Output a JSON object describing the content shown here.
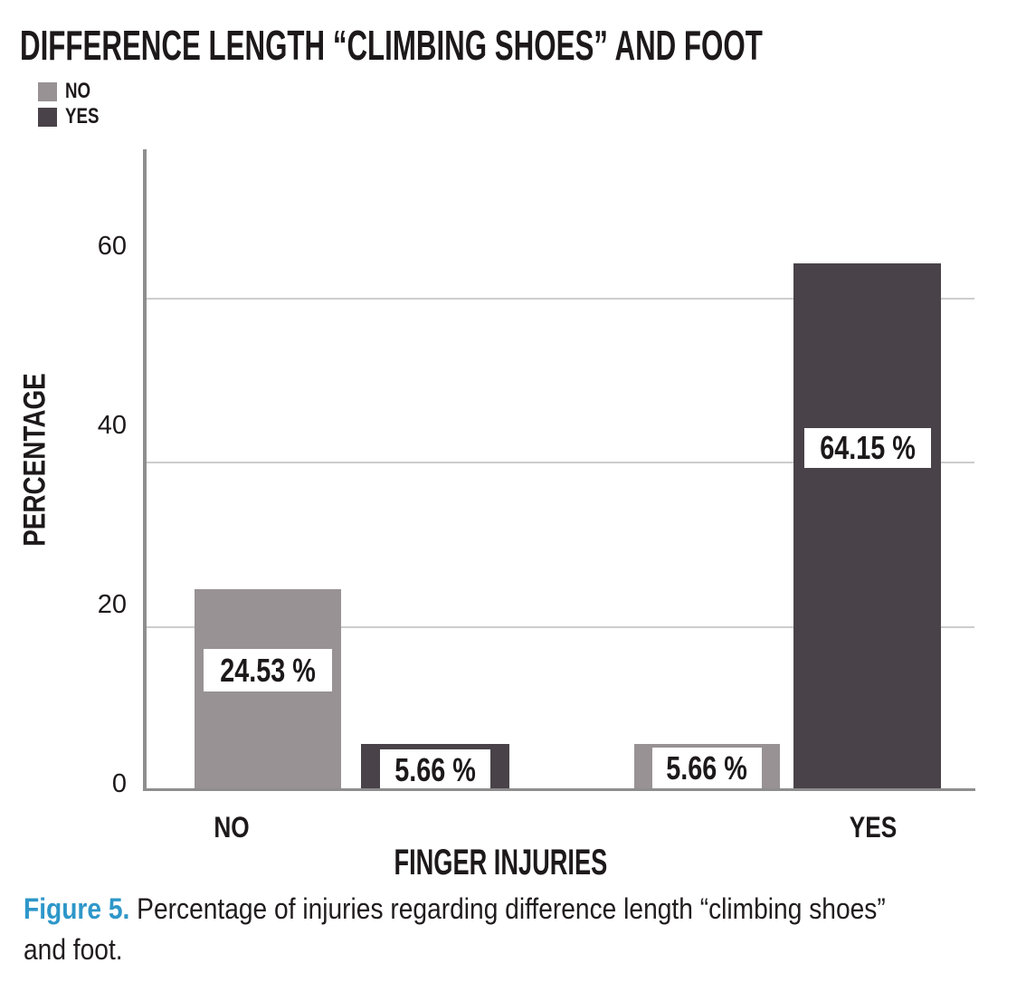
{
  "page": {
    "background": "#ffffff"
  },
  "chart_data": {
    "type": "bar",
    "title": "DIFFERENCE LENGTH “CLIMBING SHOES” AND FOOT",
    "xlabel": "FINGER INJURIES",
    "ylabel": "PERCENTAGE",
    "categories": [
      "NO",
      "YES"
    ],
    "series": [
      {
        "name": "NO",
        "color": "#989294",
        "values": [
          24.53,
          5.66
        ]
      },
      {
        "name": "YES",
        "color": "#494349",
        "values": [
          5.66,
          64.15
        ]
      }
    ],
    "yticks": [
      0,
      20,
      40,
      60
    ],
    "ylim": [
      0,
      70
    ],
    "grid": true,
    "value_suffix": " %",
    "legend_position": "top-left",
    "gridline_color": "#cecccd",
    "axis_color": "#8e8e8e",
    "value_label_box_color": "#ffffff",
    "text_color": "#1d191a"
  },
  "caption": {
    "prefix": "Figure 5.",
    "prefix_color": "#2e97c9",
    "text": "Percentage of injuries regarding difference length “climbing shoes” and foot."
  }
}
